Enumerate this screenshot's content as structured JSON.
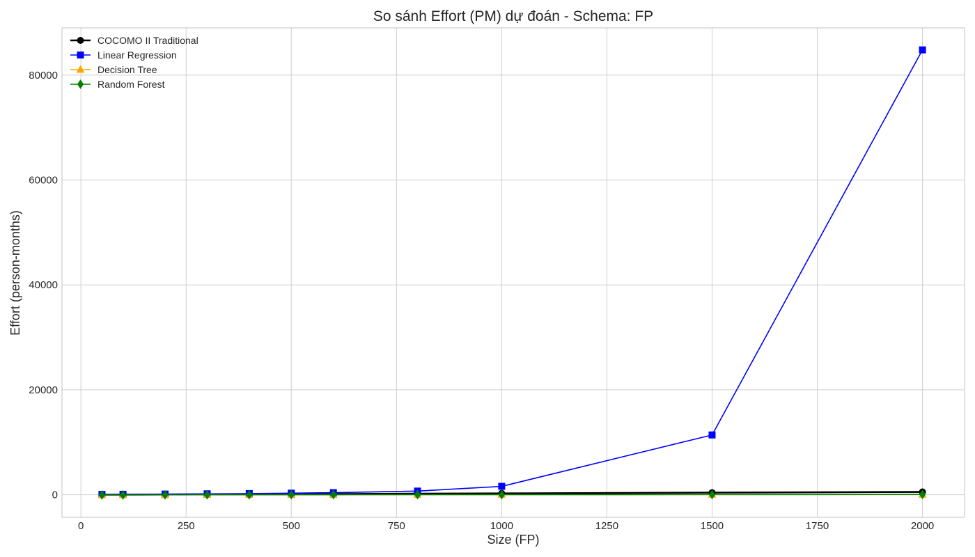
{
  "chart_data": {
    "type": "line",
    "title": "So sánh Effort (PM) dự đoán - Schema: FP",
    "xlabel": "Size (FP)",
    "ylabel": "Effort (person-months)",
    "xlim": [
      -45,
      2100
    ],
    "ylim": [
      -4300,
      89000
    ],
    "xticks": [
      0,
      250,
      500,
      750,
      1000,
      1250,
      1500,
      1750,
      2000
    ],
    "yticks": [
      0,
      20000,
      40000,
      60000,
      80000
    ],
    "grid": true,
    "legend_position": "top-left",
    "x": [
      50,
      100,
      200,
      300,
      400,
      500,
      600,
      800,
      1000,
      1500,
      2000
    ],
    "series": [
      {
        "name": "COCOMO II Traditional",
        "color": "#000000",
        "marker": "circle",
        "line_width": "thick",
        "values": [
          10,
          20,
          45,
          70,
          95,
          120,
          150,
          200,
          260,
          400,
          540
        ]
      },
      {
        "name": "Linear Regression",
        "color": "#0000ff",
        "marker": "square",
        "line_width": "normal",
        "values": [
          70,
          90,
          130,
          180,
          230,
          300,
          400,
          700,
          1600,
          11400,
          84800
        ]
      },
      {
        "name": "Decision Tree",
        "color": "#ffa500",
        "marker": "triangle",
        "line_width": "normal",
        "values": [
          -50,
          -50,
          -30,
          0,
          0,
          20,
          20,
          30,
          40,
          40,
          40
        ]
      },
      {
        "name": "Random Forest",
        "color": "#008000",
        "marker": "diamond",
        "line_width": "normal",
        "values": [
          -40,
          -30,
          -20,
          0,
          0,
          10,
          10,
          20,
          20,
          30,
          60
        ]
      }
    ]
  }
}
